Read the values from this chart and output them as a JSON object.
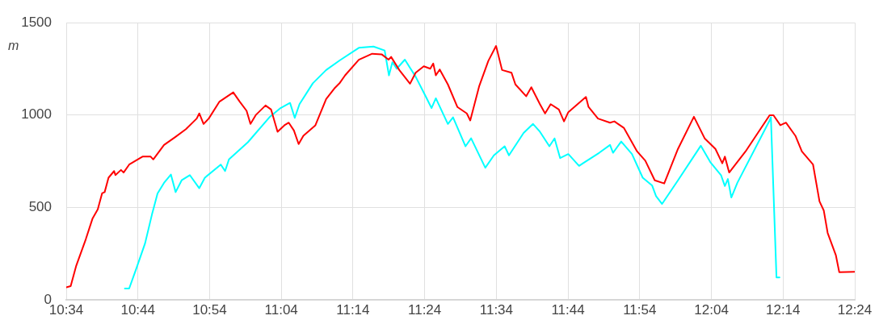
{
  "chart_data": {
    "type": "line",
    "ylabel": "m",
    "xlim": [
      10.5667,
      12.4
    ],
    "ylim": [
      0,
      1500
    ],
    "yticks": [
      0,
      500,
      1000,
      1500
    ],
    "xticks": [
      {
        "value": 10.5667,
        "label": "10:34"
      },
      {
        "value": 10.7333,
        "label": "10:44"
      },
      {
        "value": 10.9,
        "label": "10:54"
      },
      {
        "value": 11.0667,
        "label": "11:04"
      },
      {
        "value": 11.2333,
        "label": "11:14"
      },
      {
        "value": 11.4,
        "label": "11:24"
      },
      {
        "value": 11.5667,
        "label": "11:34"
      },
      {
        "value": 11.7333,
        "label": "11:44"
      },
      {
        "value": 11.9,
        "label": "11:54"
      },
      {
        "value": 12.0667,
        "label": "12:04"
      },
      {
        "value": 12.2333,
        "label": "12:14"
      },
      {
        "value": 12.4,
        "label": "12:24"
      }
    ],
    "grid": true,
    "legend": false,
    "marker": "none",
    "line_style": "solid",
    "series": [
      {
        "color": "#ff0000",
        "x": [
          10.567,
          10.577,
          10.59,
          10.612,
          10.628,
          10.64,
          10.65,
          10.656,
          10.665,
          10.678,
          10.681,
          10.694,
          10.7,
          10.713,
          10.744,
          10.763,
          10.769,
          10.794,
          10.82,
          10.845,
          10.87,
          10.876,
          10.886,
          10.898,
          10.923,
          10.955,
          10.97,
          10.986,
          10.995,
          11.008,
          11.03,
          11.043,
          11.058,
          11.074,
          11.084,
          11.096,
          11.107,
          11.118,
          11.146,
          11.171,
          11.19,
          11.203,
          11.215,
          11.247,
          11.278,
          11.3,
          11.316,
          11.322,
          11.341,
          11.366,
          11.379,
          11.398,
          11.413,
          11.42,
          11.426,
          11.435,
          11.454,
          11.476,
          11.498,
          11.506,
          11.527,
          11.548,
          11.566,
          11.58,
          11.602,
          11.611,
          11.636,
          11.648,
          11.668,
          11.68,
          11.693,
          11.712,
          11.724,
          11.734,
          11.775,
          11.781,
          11.803,
          11.831,
          11.841,
          11.863,
          11.894,
          11.913,
          11.935,
          11.957,
          11.989,
          12.026,
          12.051,
          12.076,
          12.092,
          12.098,
          12.108,
          12.146,
          12.202,
          12.211,
          12.227,
          12.24,
          12.262,
          12.277,
          12.303,
          12.318,
          12.328,
          12.337,
          12.356,
          12.364,
          12.4
        ],
        "values": [
          68,
          74,
          185,
          327,
          441,
          490,
          576,
          583,
          661,
          697,
          675,
          703,
          689,
          732,
          775,
          775,
          760,
          838,
          881,
          924,
          981,
          1009,
          952,
          981,
          1073,
          1123,
          1073,
          1023,
          952,
          1002,
          1052,
          1030,
          910,
          945,
          959,
          917,
          843,
          888,
          945,
          1087,
          1144,
          1175,
          1215,
          1300,
          1332,
          1329,
          1300,
          1315,
          1244,
          1170,
          1229,
          1264,
          1251,
          1279,
          1215,
          1247,
          1166,
          1044,
          1009,
          971,
          1158,
          1293,
          1374,
          1244,
          1229,
          1166,
          1102,
          1151,
          1059,
          1009,
          1059,
          1030,
          966,
          1016,
          1098,
          1044,
          981,
          959,
          966,
          931,
          803,
          753,
          647,
          630,
          817,
          991,
          874,
          817,
          739,
          775,
          689,
          803,
          999,
          999,
          945,
          959,
          888,
          803,
          732,
          533,
          483,
          362,
          242,
          149,
          152
        ]
      },
      {
        "color": "#00ffff",
        "x": [
          10.703,
          10.713,
          10.731,
          10.75,
          10.766,
          10.779,
          10.794,
          10.81,
          10.821,
          10.835,
          10.854,
          10.876,
          10.889,
          10.926,
          10.936,
          10.945,
          10.989,
          11.039,
          11.065,
          11.087,
          11.098,
          11.109,
          11.14,
          11.171,
          11.203,
          11.247,
          11.281,
          11.307,
          11.317,
          11.325,
          11.335,
          11.354,
          11.379,
          11.404,
          11.416,
          11.426,
          11.454,
          11.466,
          11.495,
          11.508,
          11.541,
          11.561,
          11.586,
          11.596,
          11.63,
          11.652,
          11.668,
          11.69,
          11.702,
          11.715,
          11.734,
          11.759,
          11.768,
          11.806,
          11.831,
          11.838,
          11.857,
          11.882,
          11.907,
          11.929,
          11.938,
          11.952,
          11.989,
          12.042,
          12.064,
          12.089,
          12.098,
          12.105,
          12.113,
          12.127,
          12.202,
          12.205,
          12.218,
          12.225
        ],
        "values": [
          61,
          61,
          178,
          306,
          462,
          576,
          633,
          678,
          583,
          647,
          675,
          604,
          661,
          732,
          697,
          760,
          853,
          988,
          1038,
          1066,
          985,
          1059,
          1172,
          1244,
          1297,
          1364,
          1371,
          1350,
          1215,
          1286,
          1251,
          1300,
          1208,
          1094,
          1038,
          1091,
          952,
          988,
          831,
          874,
          715,
          782,
          831,
          782,
          903,
          952,
          910,
          831,
          874,
          767,
          789,
          725,
          739,
          796,
          838,
          796,
          857,
          789,
          661,
          618,
          561,
          519,
          647,
          834,
          746,
          675,
          616,
          654,
          554,
          633,
          971,
          988,
          121,
          121
        ]
      }
    ]
  }
}
